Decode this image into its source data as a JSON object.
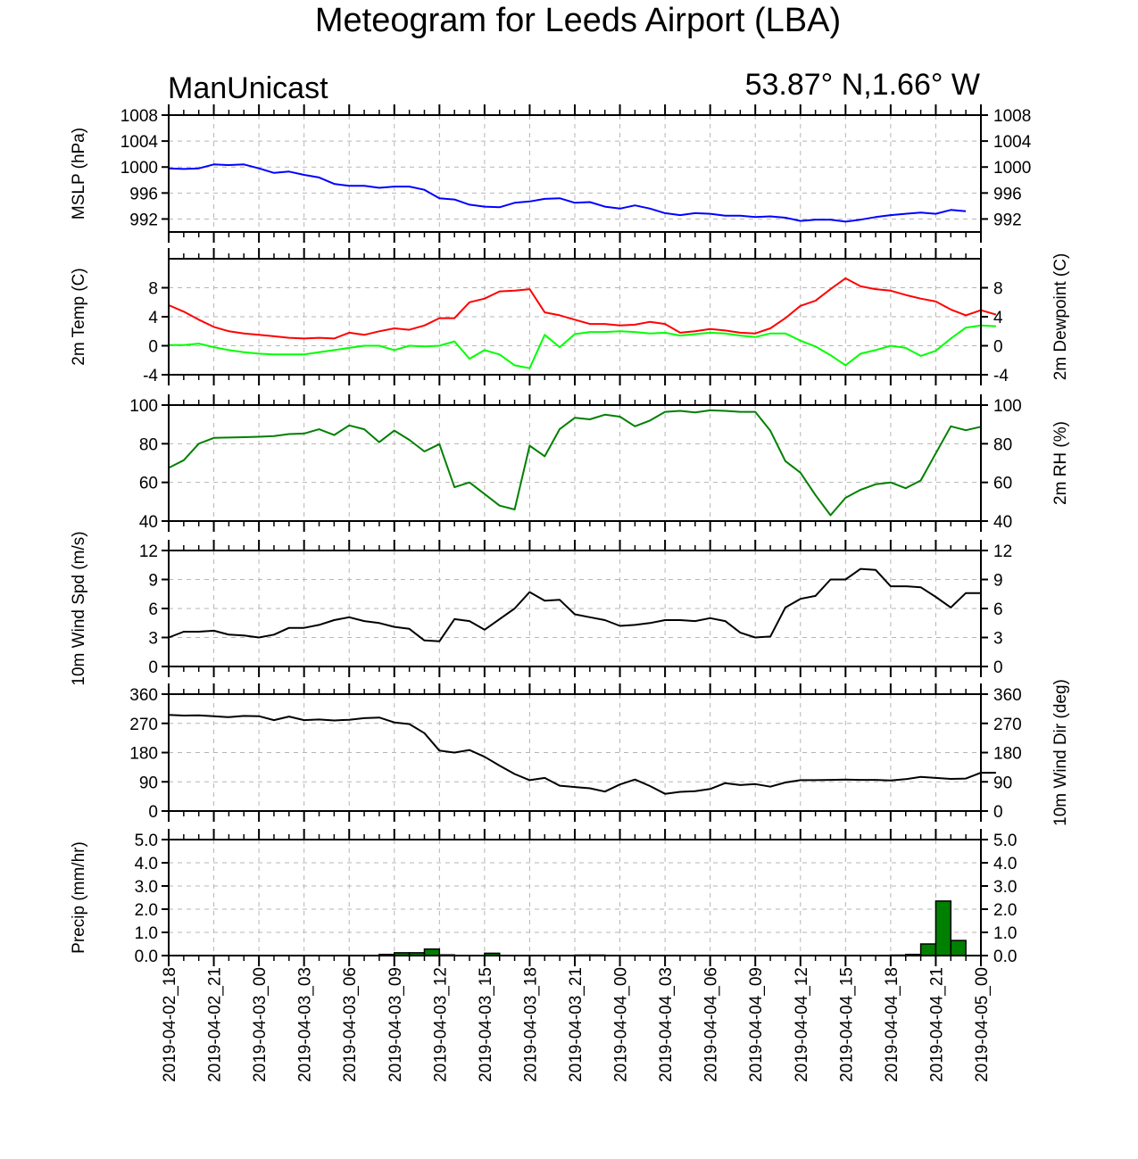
{
  "title": "Meteogram for Leeds Airport (LBA)",
  "model": "ManUnicast",
  "location": "53.87° N,1.66° W",
  "chart_data": {
    "type": "line",
    "x_tick_labels": [
      "2019-04-02_18",
      "2019-04-02_21",
      "2019-04-03_00",
      "2019-04-03_03",
      "2019-04-03_06",
      "2019-04-03_09",
      "2019-04-03_12",
      "2019-04-03_15",
      "2019-04-03_18",
      "2019-04-03_21",
      "2019-04-04_00",
      "2019-04-04_03",
      "2019-04-04_06",
      "2019-04-04_09",
      "2019-04-04_12",
      "2019-04-04_15",
      "2019-04-04_18",
      "2019-04-04_21",
      "2019-04-05_00"
    ],
    "x_range_hours": [
      0,
      54
    ],
    "panels": [
      {
        "key": "mslp",
        "ylabel_left": "MSLP (hPa)",
        "ylabel_right": "",
        "ylim": [
          990,
          1008
        ],
        "ticks": [
          992,
          996,
          1000,
          1004,
          1008
        ],
        "tick_labels": [
          "992",
          "996",
          "1000",
          "1004",
          "1008"
        ],
        "series": [
          {
            "color": "#0000ff",
            "values": [
              999.8,
              999.7,
              999.8,
              1000.4,
              1000.3,
              1000.4,
              999.8,
              999.1,
              999.3,
              998.8,
              998.4,
              997.4,
              997.1,
              997.1,
              996.8,
              997.0,
              997.0,
              996.5,
              995.2,
              995.0,
              994.2,
              993.9,
              993.8,
              994.5,
              994.7,
              995.1,
              995.2,
              994.5,
              994.6,
              993.9,
              993.6,
              994.1,
              993.6,
              992.9,
              992.6,
              992.9,
              992.8,
              992.5,
              992.5,
              992.3,
              992.4,
              992.2,
              991.7,
              991.9,
              991.9,
              991.6,
              991.9,
              992.3,
              992.6,
              992.8,
              993.0,
              992.8,
              993.4,
              993.2
            ]
          }
        ]
      },
      {
        "key": "temp",
        "ylabel_left": "2m Temp (C)",
        "ylabel_right": "2m Dewpoint (C)",
        "ylim": [
          -4,
          12
        ],
        "ticks": [
          -4,
          0,
          4,
          8
        ],
        "tick_labels": [
          "-4",
          "0",
          "4",
          "8"
        ],
        "series": [
          {
            "color": "#ff0000",
            "values": [
              5.6,
              4.7,
              3.6,
              2.6,
              2.0,
              1.7,
              1.5,
              1.3,
              1.1,
              1.0,
              1.1,
              1.0,
              1.8,
              1.5,
              2.0,
              2.4,
              2.2,
              2.8,
              3.8,
              3.8,
              6.0,
              6.5,
              7.5,
              7.6,
              7.8,
              4.6,
              4.2,
              3.6,
              3.0,
              3.0,
              2.8,
              2.9,
              3.3,
              3.0,
              1.8,
              2.0,
              2.3,
              2.1,
              1.8,
              1.7,
              2.4,
              3.8,
              5.5,
              6.2,
              7.8,
              9.3,
              8.2,
              7.8,
              7.6,
              7.0,
              6.5,
              6.1,
              5.0,
              4.2,
              4.9,
              4.3
            ]
          },
          {
            "color": "#00ff00",
            "values": [
              0.1,
              0.1,
              0.3,
              -0.2,
              -0.6,
              -0.9,
              -1.1,
              -1.2,
              -1.2,
              -1.2,
              -0.9,
              -0.6,
              -0.3,
              0.0,
              0.0,
              -0.6,
              0.0,
              -0.1,
              0.0,
              0.6,
              -1.8,
              -0.6,
              -1.2,
              -2.7,
              -3.1,
              1.5,
              -0.2,
              1.6,
              1.9,
              1.9,
              2.0,
              1.9,
              1.7,
              1.8,
              1.4,
              1.6,
              1.8,
              1.7,
              1.4,
              1.2,
              1.7,
              1.7,
              0.7,
              -0.1,
              -1.3,
              -2.7,
              -1.1,
              -0.6,
              0.0,
              -0.3,
              -1.4,
              -0.7,
              1.0,
              2.5,
              2.8,
              2.7
            ]
          }
        ]
      },
      {
        "key": "rh",
        "ylabel_left": "",
        "ylabel_right": "2m RH (%)",
        "ylim": [
          40,
          100
        ],
        "ticks": [
          40,
          60,
          80,
          100
        ],
        "tick_labels": [
          "40",
          "60",
          "80",
          "100"
        ],
        "series": [
          {
            "color": "#008000",
            "values": [
              67.5,
              71.5,
              80.0,
              83.0,
              83.2,
              83.4,
              83.6,
              84.0,
              85.0,
              85.3,
              87.5,
              84.5,
              89.5,
              87.5,
              80.8,
              86.8,
              82.0,
              76.0,
              79.8,
              57.5,
              60.0,
              54.0,
              48.0,
              46.0,
              79.0,
              73.5,
              87.6,
              93.4,
              92.6,
              95.0,
              94.0,
              89.0,
              92.0,
              96.5,
              97.0,
              96.2,
              97.3,
              97.0,
              96.5,
              96.5,
              86.7,
              71.0,
              65.0,
              53.5,
              43.0,
              52.0,
              56.2,
              59.0,
              60.0,
              57.0,
              61.0,
              75.0,
              89.0,
              87.0,
              88.8
            ]
          }
        ]
      },
      {
        "key": "wspd",
        "ylabel_left": "10m Wind Spd (m/s)",
        "ylabel_right": "",
        "ylim": [
          0,
          12
        ],
        "ticks": [
          0,
          3,
          6,
          9,
          12
        ],
        "tick_labels": [
          "0",
          "3",
          "6",
          "9",
          "12"
        ],
        "series": [
          {
            "color": "#000000",
            "values": [
              3.0,
              3.6,
              3.6,
              3.7,
              3.3,
              3.2,
              3.0,
              3.3,
              4.0,
              4.0,
              4.3,
              4.8,
              5.1,
              4.7,
              4.5,
              4.1,
              3.9,
              2.7,
              2.6,
              4.9,
              4.7,
              3.8,
              4.9,
              6.0,
              7.7,
              6.8,
              6.9,
              5.4,
              5.1,
              4.8,
              4.2,
              4.3,
              4.5,
              4.8,
              4.8,
              4.7,
              5.0,
              4.7,
              3.5,
              3.0,
              3.1,
              6.1,
              7.0,
              7.3,
              9.0,
              9.0,
              10.1,
              10.0,
              8.3,
              8.3,
              8.2,
              7.2,
              6.1,
              7.6,
              7.6
            ]
          }
        ]
      },
      {
        "key": "wdir",
        "ylabel_left": "",
        "ylabel_right": "10m Wind Dir (deg)",
        "ylim": [
          0,
          360
        ],
        "ticks": [
          0,
          90,
          180,
          270,
          360
        ],
        "tick_labels": [
          "0",
          "90",
          "180",
          "270",
          "360"
        ],
        "series": [
          {
            "color": "#000000",
            "values": [
              296,
              294,
              295,
              292,
              289,
              293,
              292,
              280,
              291,
              280,
              282,
              279,
              281,
              286,
              288,
              273,
              268,
              240,
              186,
              180,
              188,
              167,
              140,
              114,
              95,
              102,
              78,
              74,
              70,
              60,
              82,
              97,
              77,
              53,
              59,
              61,
              68,
              86,
              80,
              83,
              75,
              88,
              95,
              95,
              96,
              97,
              96,
              96,
              94,
              98,
              105,
              102,
              99,
              100,
              118,
              118
            ]
          }
        ]
      },
      {
        "key": "precip",
        "ylabel_left": "Precip (mm/hr)",
        "ylabel_right": "",
        "ylim": [
          0,
          5
        ],
        "ticks": [
          0,
          1,
          2,
          3,
          4,
          5
        ],
        "tick_labels": [
          "0.0",
          "1.0",
          "2.0",
          "3.0",
          "4.0",
          "5.0"
        ],
        "bars": [
          {
            "x": 14,
            "value": 0.05
          },
          {
            "x": 15,
            "value": 0.12
          },
          {
            "x": 16,
            "value": 0.12
          },
          {
            "x": 17,
            "value": 0.28
          },
          {
            "x": 18,
            "value": 0.03
          },
          {
            "x": 21,
            "value": 0.1
          },
          {
            "x": 27,
            "value": 0.02
          },
          {
            "x": 28,
            "value": 0.02
          },
          {
            "x": 48,
            "value": 0.02
          },
          {
            "x": 49,
            "value": 0.05
          },
          {
            "x": 50,
            "value": 0.5
          },
          {
            "x": 51,
            "value": 2.35
          },
          {
            "x": 52,
            "value": 0.65
          }
        ],
        "bar_color": "#008000"
      }
    ]
  }
}
